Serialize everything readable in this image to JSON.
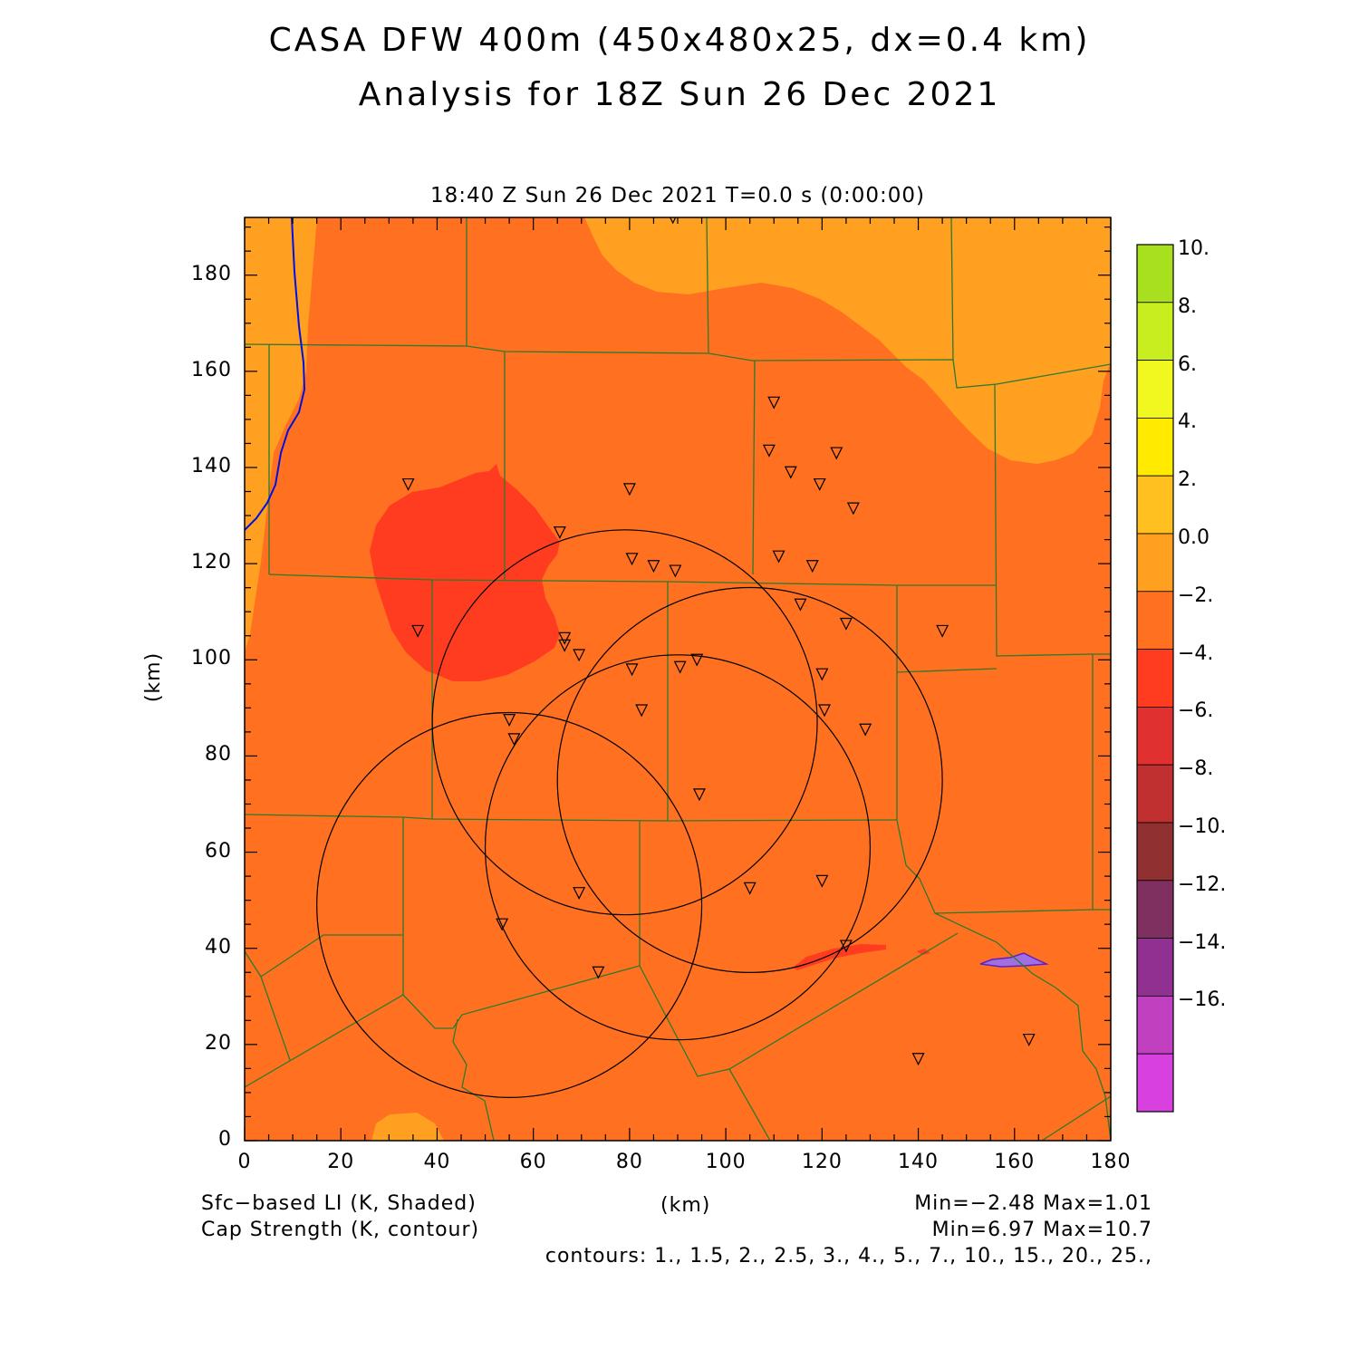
{
  "title_line1": "CASA DFW 400m (450x480x25, dx=0.4 km)",
  "title_line2": "Analysis for 18Z Sun 26 Dec 2021",
  "subtitle": "18:40 Z Sun 26 Dec 2021    T=0.0 s (0:00:00)",
  "x_axis": {
    "label": "(km)",
    "range": [
      0,
      180
    ],
    "ticks": [
      "0",
      "20",
      "40",
      "60",
      "80",
      "100",
      "120",
      "140",
      "160",
      "180"
    ]
  },
  "y_axis": {
    "label": "(km)",
    "range": [
      0,
      192
    ],
    "ticks": [
      "0",
      "20",
      "40",
      "60",
      "80",
      "100",
      "120",
      "140",
      "160",
      "180"
    ]
  },
  "colorbar": {
    "labels": [
      "10.",
      "8.",
      "6.",
      "4.",
      "2.",
      "0.0",
      "−2.",
      "−4.",
      "−6.",
      "−8.",
      "−10.",
      "−12.",
      "−14.",
      "−16."
    ],
    "colors": [
      "#a8e020",
      "#c8ee20",
      "#f0f820",
      "#ffea00",
      "#ffc020",
      "#ffa020",
      "#ff7020",
      "#ff3c20",
      "#e03030",
      "#c03030",
      "#903030",
      "#803060",
      "#903090",
      "#c040c0",
      "#d840e0"
    ]
  },
  "legend": {
    "shaded": "Sfc−based LI (K, Shaded)",
    "contour": "Cap Strength (K, contour)",
    "units": "(km)",
    "shaded_minmax": "Min=−2.48 Max=1.01",
    "contour_minmax": "Min=6.97 Max=10.7",
    "contours": "contours: 1., 1.5, 2., 2.5, 3., 4., 5., 7., 10., 15., 20., 25.,"
  },
  "radar_rings": [
    {
      "center_km": [
        105,
        75
      ],
      "radius_km": 40
    },
    {
      "center_km": [
        79,
        87
      ],
      "radius_km": 40
    },
    {
      "center_km": [
        90,
        61
      ],
      "radius_km": 40
    },
    {
      "center_km": [
        55,
        49
      ],
      "radius_km": 40
    }
  ],
  "stations_km": [
    [
      89,
      192
    ],
    [
      110,
      153.5
    ],
    [
      34,
      136.5
    ],
    [
      80,
      135.5
    ],
    [
      109,
      143.5
    ],
    [
      123,
      143
    ],
    [
      113.5,
      139
    ],
    [
      119.5,
      136.5
    ],
    [
      126.5,
      131.5
    ],
    [
      65.5,
      126.5
    ],
    [
      80.5,
      121
    ],
    [
      85,
      119.5
    ],
    [
      89.5,
      118.5
    ],
    [
      111,
      121.5
    ],
    [
      118,
      119.5
    ],
    [
      115.5,
      111.5
    ],
    [
      125,
      107.5
    ],
    [
      36,
      106
    ],
    [
      66.5,
      104.5
    ],
    [
      66.5,
      103
    ],
    [
      69.5,
      101
    ],
    [
      145,
      106
    ],
    [
      94,
      100
    ],
    [
      90.5,
      98.5
    ],
    [
      80.5,
      98
    ],
    [
      120,
      97
    ],
    [
      55,
      87.5
    ],
    [
      56,
      83.5
    ],
    [
      82.5,
      89.5
    ],
    [
      120.5,
      89.5
    ],
    [
      129,
      85.5
    ],
    [
      94.5,
      72
    ],
    [
      69.5,
      51.5
    ],
    [
      105,
      52.5
    ],
    [
      120,
      54
    ],
    [
      53.5,
      45
    ],
    [
      125,
      40.5
    ],
    [
      73.5,
      35
    ],
    [
      140,
      17
    ],
    [
      163,
      21
    ]
  ]
}
